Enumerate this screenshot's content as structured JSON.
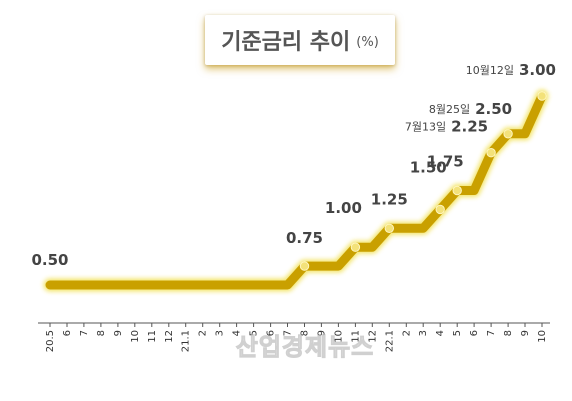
{
  "header": {
    "title": "기준금리 추이",
    "unit": "(%)"
  },
  "watermark": "산업경제뉴스",
  "colors": {
    "line": "#c9a000",
    "glow": "#f2e25a",
    "point": "#f3e27a",
    "axis": "#555555",
    "text": "#444444"
  },
  "chart_data": {
    "type": "line",
    "title": "기준금리 추이",
    "unit": "(%)",
    "x": [
      "20.5",
      "6",
      "7",
      "8",
      "9",
      "10",
      "11",
      "12",
      "21.1",
      "2",
      "3",
      "4",
      "5",
      "6",
      "7",
      "8",
      "9",
      "10",
      "11",
      "12",
      "22.1",
      "2",
      "3",
      "4",
      "5",
      "6",
      "7",
      "8",
      "9",
      "10"
    ],
    "values": [
      0.5,
      0.5,
      0.5,
      0.5,
      0.5,
      0.5,
      0.5,
      0.5,
      0.5,
      0.5,
      0.5,
      0.5,
      0.5,
      0.5,
      0.5,
      0.75,
      0.75,
      0.75,
      1.0,
      1.0,
      1.25,
      1.25,
      1.25,
      1.5,
      1.75,
      1.75,
      2.25,
      2.5,
      2.5,
      3.0
    ],
    "grid": false,
    "data_labels": [
      {
        "index": 0,
        "value": "0.50",
        "date": ""
      },
      {
        "index": 15,
        "value": "0.75",
        "date": ""
      },
      {
        "index": 18,
        "value": "1.00",
        "date": ""
      },
      {
        "index": 20,
        "value": "1.25",
        "date": ""
      },
      {
        "index": 23,
        "value": "1.50",
        "date": ""
      },
      {
        "index": 24,
        "value": "1.75",
        "date": ""
      },
      {
        "index": 26,
        "value": "2.25",
        "date": "7월13일"
      },
      {
        "index": 27,
        "value": "2.50",
        "date": "8월25일"
      },
      {
        "index": 29,
        "value": "3.00",
        "date": "10월12일"
      }
    ]
  }
}
